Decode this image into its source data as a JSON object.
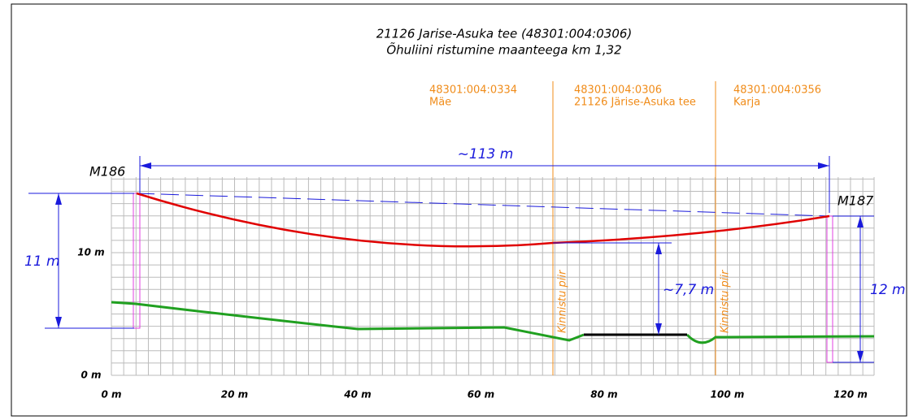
{
  "header": {
    "title": "21126 Jarise-Asuka tee (48301:004:0306)",
    "subtitle": "Õhuliini ristumine maanteega km 1,32"
  },
  "parcels": [
    {
      "id": "48301:004:0334",
      "name": "Mäe"
    },
    {
      "id": "48301:004:0306",
      "name": "21126 Järise-Asuka tee"
    },
    {
      "id": "48301:004:0356",
      "name": "Karja"
    }
  ],
  "boundaries": [
    "Kinnistu piir",
    "Kinnistu piir"
  ],
  "poles": [
    "M186",
    "M187"
  ],
  "dimensions": {
    "span": "~113 m",
    "left_height": "11 m",
    "right_height": "12 m",
    "clearance": "~7,7 m"
  },
  "x_axis": [
    "0 m",
    "20 m",
    "40 m",
    "60 m",
    "80 m",
    "100 m",
    "120 m"
  ],
  "y_axis": [
    "10 m",
    "0 m"
  ]
}
